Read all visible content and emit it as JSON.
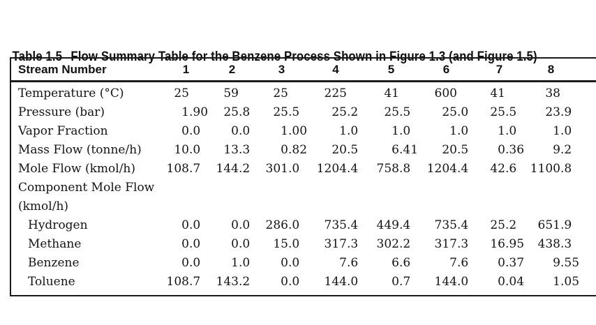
{
  "caption": {
    "number": "Table 1.5",
    "text": "Flow Summary Table for the Benzene Process Shown in Figure 1.3 (and Figure 1.5)"
  },
  "table": {
    "header": {
      "label": "Stream Number",
      "columns": [
        "1",
        "2",
        "3",
        "4",
        "5",
        "6",
        "7",
        "8"
      ]
    },
    "rows": [
      {
        "label": "Temperature (°C)",
        "indent": false,
        "values": [
          "25",
          "59",
          "25",
          "225",
          "41",
          "600",
          "41",
          "38"
        ]
      },
      {
        "label": "Pressure (bar)",
        "indent": false,
        "values": [
          "1.90",
          "25.8",
          "25.5",
          "25.2",
          "25.5",
          "25.0",
          "25.5",
          "23.9"
        ]
      },
      {
        "label": "Vapor Fraction",
        "indent": false,
        "values": [
          "0.0",
          "0.0",
          "1.00",
          "1.0",
          "1.0",
          "1.0",
          "1.0",
          "1.0"
        ]
      },
      {
        "label": "Mass Flow (tonne/h)",
        "indent": false,
        "values": [
          "10.0",
          "13.3",
          "0.82",
          "20.5",
          "6.41",
          "20.5",
          "0.36",
          "9.2"
        ]
      },
      {
        "label": "Mole Flow (kmol/h)",
        "indent": false,
        "values": [
          "108.7",
          "144.2",
          "301.0",
          "1204.4",
          "758.8",
          "1204.4",
          "42.6",
          "1100.8"
        ]
      },
      {
        "label": "Component Mole Flow (kmol/h)",
        "indent": false,
        "values": [
          "",
          "",
          "",
          "",
          "",
          "",
          "",
          ""
        ]
      },
      {
        "label": "Hydrogen",
        "indent": true,
        "values": [
          "0.0",
          "0.0",
          "286.0",
          "735.4",
          "449.4",
          "735.4",
          "25.2",
          "651.9"
        ]
      },
      {
        "label": "Methane",
        "indent": true,
        "values": [
          "0.0",
          "0.0",
          "15.0",
          "317.3",
          "302.2",
          "317.3",
          "16.95",
          "438.3"
        ]
      },
      {
        "label": "Benzene",
        "indent": true,
        "values": [
          "0.0",
          "1.0",
          "0.0",
          "7.6",
          "6.6",
          "7.6",
          "0.37",
          "9.55"
        ]
      },
      {
        "label": "Toluene",
        "indent": true,
        "values": [
          "108.7",
          "143.2",
          "0.0",
          "144.0",
          "0.7",
          "144.0",
          "0.04",
          "1.05"
        ]
      }
    ]
  },
  "colors": {
    "background": "#ffffff",
    "text": "#141414",
    "rule": "#1a1a1a"
  }
}
